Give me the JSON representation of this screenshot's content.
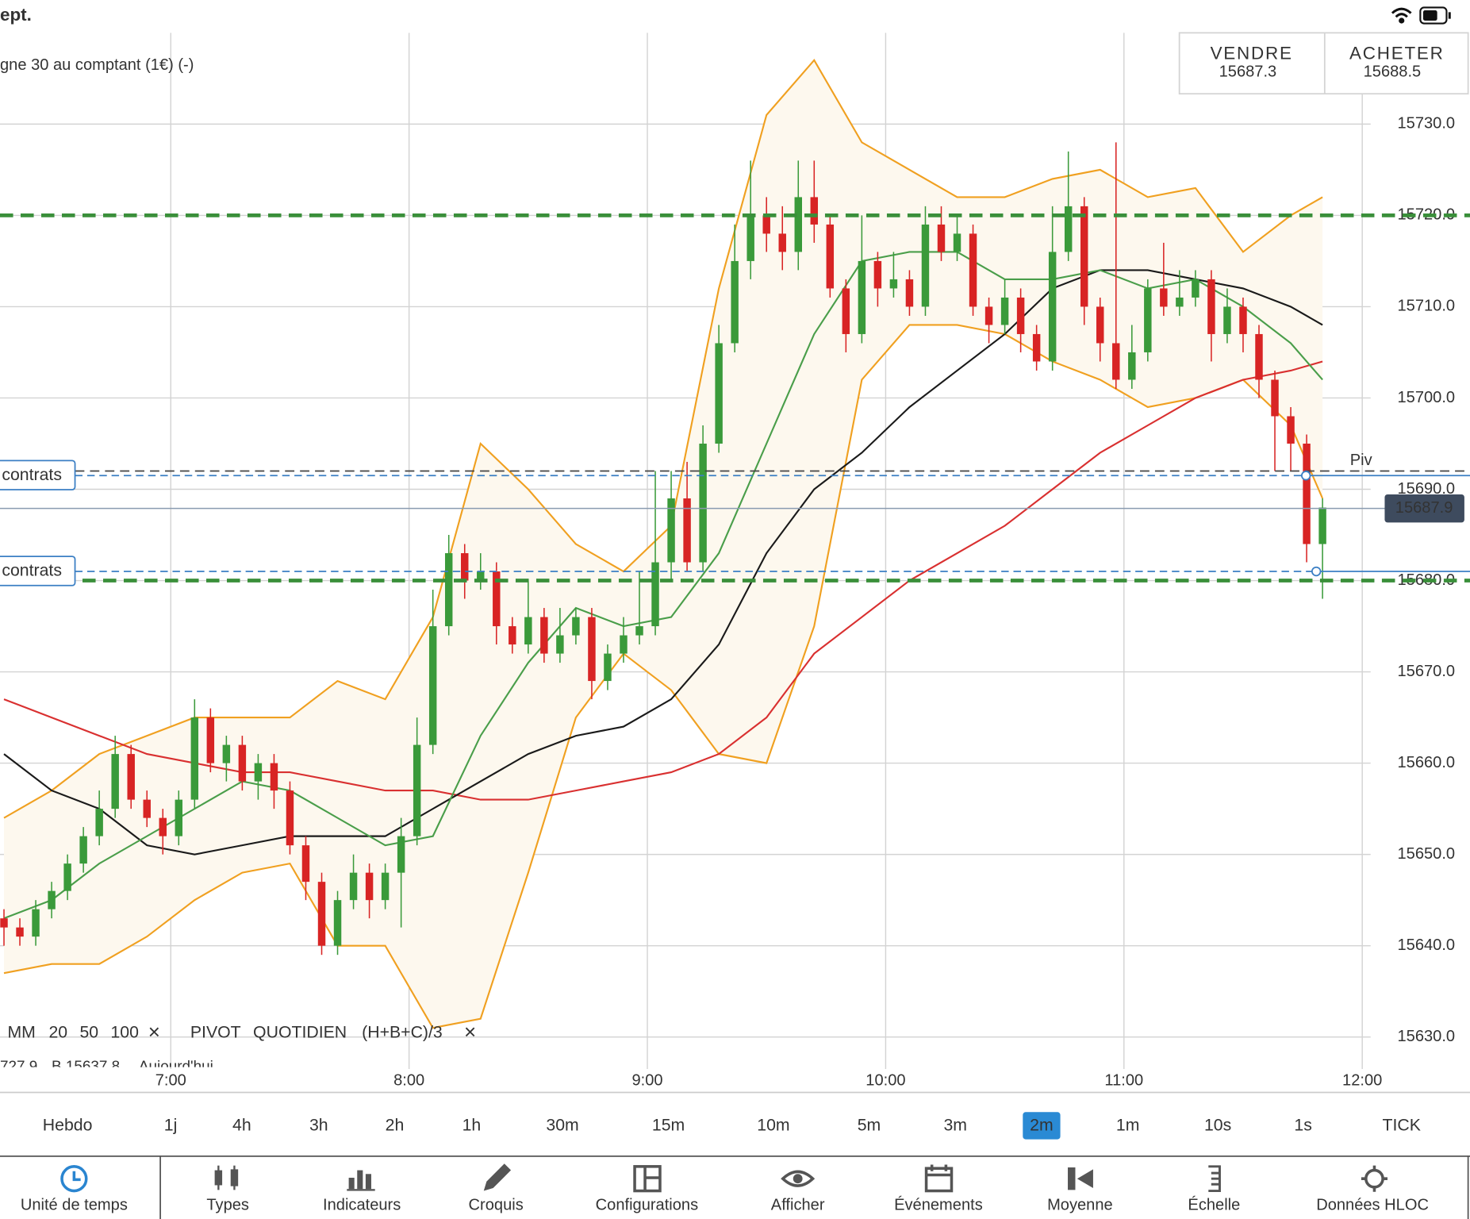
{
  "status": {
    "carrier": "ept."
  },
  "instrument": {
    "name": "gne 30 au comptant (1€) (-)"
  },
  "quote": {
    "sell_label": "VENDRE",
    "sell": 15687.3,
    "buy_label": "ACHETER",
    "buy": 15688.5
  },
  "legend": {
    "ma_label": "MM",
    "close_symbol": "×",
    "pivot_label": "PIVOT",
    "pivot_period": "QUOTIDIEN",
    "pivot_formula": "(H+B+C)/3",
    "pivot_close_symbol": "×"
  },
  "info_row": [
    "727.9",
    "B 15637.8",
    "Aujourd'hui"
  ],
  "timeframes": [
    "Hebdo",
    "1j",
    "4h",
    "3h",
    "2h",
    "1h",
    "30m",
    "15m",
    "10m",
    "5m",
    "3m",
    "2m",
    "1m",
    "10s",
    "1s",
    "TICK"
  ],
  "selected_timeframe": "2m",
  "toolbar": [
    "Unité de temps",
    "Types",
    "Indicateurs",
    "Croquis",
    "Configurations",
    "Afficher",
    "Événements",
    "Moyenne",
    "Échelle",
    "Données HLOC"
  ],
  "active_tool": "Unité de temps",
  "chart_data": {
    "type": "candlestick",
    "up_color": "#3a9a3a",
    "down_color": "#d82424",
    "grid": true,
    "xlim": [
      377,
      724
    ],
    "ylim": [
      15626.5,
      15740
    ],
    "xticks": [
      {
        "value": 420,
        "label": "7:00"
      },
      {
        "value": 480,
        "label": "8:00"
      },
      {
        "value": 540,
        "label": "9:00"
      },
      {
        "value": 600,
        "label": "10:00"
      },
      {
        "value": 660,
        "label": "11:00"
      },
      {
        "value": 720,
        "label": "12:00"
      }
    ],
    "yticks": [
      {
        "value": 15630,
        "label": "15630.0"
      },
      {
        "value": 15640,
        "label": "15640.0"
      },
      {
        "value": 15650,
        "label": "15650.0"
      },
      {
        "value": 15660,
        "label": "15660.0"
      },
      {
        "value": 15670,
        "label": "15670.0"
      },
      {
        "value": 15680,
        "label": "15680.0"
      },
      {
        "value": 15690,
        "label": "15690.0"
      },
      {
        "value": 15700,
        "label": "15700.0"
      },
      {
        "value": 15710,
        "label": "15710.0"
      },
      {
        "value": 15720,
        "label": "15720.0"
      },
      {
        "value": 15730,
        "label": "15730.0"
      }
    ],
    "x": [
      378,
      382,
      386,
      390,
      394,
      398,
      402,
      406,
      410,
      414,
      418,
      422,
      426,
      430,
      434,
      438,
      442,
      446,
      450,
      454,
      458,
      462,
      466,
      470,
      474,
      478,
      482,
      486,
      490,
      494,
      498,
      502,
      506,
      510,
      514,
      518,
      522,
      526,
      530,
      534,
      538,
      542,
      546,
      550,
      554,
      558,
      562,
      566,
      570,
      574,
      578,
      582,
      586,
      590,
      594,
      598,
      602,
      606,
      610,
      614,
      618,
      622,
      626,
      630,
      634,
      638,
      642,
      646,
      650,
      654,
      658,
      662,
      666,
      670,
      674,
      678,
      682,
      686,
      690,
      694,
      698,
      702,
      706,
      710
    ],
    "open": [
      15643,
      15642,
      15641,
      15644,
      15646,
      15649,
      15652,
      15655,
      15661,
      15656,
      15654,
      15652,
      15656,
      15665,
      15660,
      15662,
      15658,
      15660,
      15657,
      15651,
      15647,
      15640,
      15645,
      15648,
      15645,
      15648,
      15652,
      15662,
      15675,
      15683,
      15680,
      15681,
      15675,
      15673,
      15676,
      15672,
      15674,
      15676,
      15669,
      15672,
      15674,
      15675,
      15682,
      15689,
      15682,
      15695,
      15706,
      15715,
      15720,
      15718,
      15716,
      15722,
      15719,
      15712,
      15707,
      15715,
      15712,
      15713,
      15710,
      15719,
      15716,
      15718,
      15710,
      15708,
      15711,
      15707,
      15704,
      15716,
      15721,
      15710,
      15706,
      15702,
      15705,
      15712,
      15710,
      15711,
      15713,
      15707,
      15710,
      15707,
      15702,
      15698,
      15695,
      15684
    ],
    "high": [
      15644,
      15643,
      15645,
      15647,
      15650,
      15653,
      15657,
      15663,
      15662,
      15657,
      15655,
      15657,
      15667,
      15666,
      15663,
      15663,
      15661,
      15661,
      15658,
      15652,
      15648,
      15646,
      15650,
      15649,
      15649,
      15654,
      15665,
      15679,
      15685,
      15684,
      15683,
      15682,
      15676,
      15680,
      15677,
      15677,
      15677,
      15677,
      15673,
      15676,
      15681,
      15692,
      15692,
      15693,
      15697,
      15708,
      15719,
      15726,
      15722,
      15721,
      15726,
      15726,
      15720,
      15713,
      15720,
      15716,
      15716,
      15714,
      15721,
      15721,
      15720,
      15719,
      15711,
      15713,
      15712,
      15708,
      15721,
      15727,
      15722,
      15711,
      15728,
      15708,
      15713,
      15717,
      15714,
      15714,
      15714,
      15712,
      15711,
      15708,
      15703,
      15699,
      15696,
      15689
    ],
    "low": [
      15640,
      15640,
      15640,
      15643,
      15645,
      15648,
      15651,
      15654,
      15655,
      15653,
      15650,
      15651,
      15655,
      15659,
      15658,
      15657,
      15656,
      15655,
      15650,
      15645,
      15639,
      15639,
      15644,
      15643,
      15644,
      15642,
      15651,
      15661,
      15674,
      15678,
      15679,
      15673,
      15672,
      15672,
      15671,
      15671,
      15673,
      15667,
      15668,
      15671,
      15673,
      15674,
      15680,
      15681,
      15681,
      15694,
      15705,
      15713,
      15716,
      15714,
      15714,
      15717,
      15711,
      15705,
      15706,
      15710,
      15711,
      15709,
      15709,
      15715,
      15715,
      15709,
      15706,
      15707,
      15705,
      15703,
      15703,
      15715,
      15708,
      15704,
      15701,
      15701,
      15704,
      15709,
      15709,
      15710,
      15704,
      15706,
      15705,
      15700,
      15692,
      15692,
      15682,
      15678
    ],
    "close": [
      15642,
      15641,
      15644,
      15646,
      15649,
      15652,
      15655,
      15661,
      15656,
      15654,
      15652,
      15656,
      15665,
      15660,
      15662,
      15658,
      15660,
      15657,
      15651,
      15647,
      15640,
      15645,
      15648,
      15645,
      15648,
      15652,
      15662,
      15675,
      15683,
      15680,
      15681,
      15675,
      15673,
      15676,
      15672,
      15674,
      15676,
      15669,
      15672,
      15674,
      15675,
      15682,
      15689,
      15682,
      15695,
      15706,
      15715,
      15720,
      15718,
      15716,
      15722,
      15719,
      15712,
      15707,
      15715,
      15712,
      15713,
      15710,
      15719,
      15716,
      15718,
      15710,
      15708,
      15711,
      15707,
      15704,
      15716,
      15721,
      15710,
      15706,
      15702,
      15705,
      15712,
      15710,
      15711,
      15713,
      15707,
      15710,
      15707,
      15702,
      15698,
      15695,
      15684,
      15688
    ],
    "band_fill": "#fdf8ee",
    "series": [
      {
        "name": "20",
        "color": "#4a9e4a",
        "x": [
          378,
          390,
          402,
          414,
          426,
          438,
          450,
          462,
          474,
          486,
          498,
          510,
          522,
          534,
          546,
          558,
          570,
          582,
          594,
          606,
          618,
          630,
          642,
          654,
          666,
          678,
          690,
          702,
          710
        ],
        "values": [
          15643,
          15645,
          15649,
          15652,
          15655,
          15658,
          15657,
          15654,
          15651,
          15652,
          15663,
          15671,
          15677,
          15675,
          15676,
          15683,
          15695,
          15707,
          15715,
          15716,
          15716,
          15713,
          15713,
          15714,
          15712,
          15713,
          15710,
          15706,
          15702
        ]
      },
      {
        "name": "50",
        "color": "#1a1a1a",
        "x": [
          378,
          390,
          402,
          414,
          426,
          438,
          450,
          462,
          474,
          486,
          498,
          510,
          522,
          534,
          546,
          558,
          570,
          582,
          594,
          606,
          618,
          630,
          642,
          654,
          666,
          678,
          690,
          702,
          710
        ],
        "values": [
          15661,
          15657,
          15655,
          15651,
          15650,
          15651,
          15652,
          15652,
          15652,
          15655,
          15658,
          15661,
          15663,
          15664,
          15667,
          15673,
          15683,
          15690,
          15694,
          15699,
          15703,
          15707,
          15712,
          15714,
          15714,
          15713,
          15712,
          15710,
          15708
        ]
      },
      {
        "name": "100",
        "color": "#d93030",
        "x": [
          378,
          390,
          402,
          414,
          426,
          438,
          450,
          462,
          474,
          486,
          498,
          510,
          522,
          534,
          546,
          558,
          570,
          582,
          594,
          606,
          618,
          630,
          642,
          654,
          666,
          678,
          690,
          702,
          710
        ],
        "values": [
          15667,
          15665,
          15663,
          15661,
          15660,
          15659,
          15659,
          15658,
          15657,
          15657,
          15656,
          15656,
          15657,
          15658,
          15659,
          15661,
          15665,
          15672,
          15676,
          15680,
          15683,
          15686,
          15690,
          15694,
          15697,
          15700,
          15702,
          15703,
          15704
        ]
      },
      {
        "color": "#f0a020",
        "x": [
          378,
          390,
          402,
          414,
          426,
          438,
          450,
          462,
          474,
          486,
          498,
          510,
          522,
          534,
          546,
          558,
          570,
          582,
          594,
          606,
          618,
          630,
          642,
          654,
          666,
          678,
          690,
          702,
          710
        ],
        "values": [
          15654,
          15657,
          15661,
          15663,
          15665,
          15665,
          15665,
          15669,
          15667,
          15676,
          15695,
          15690,
          15684,
          15681,
          15686,
          15712,
          15731,
          15737,
          15728,
          15725,
          15722,
          15722,
          15724,
          15725,
          15722,
          15723,
          15716,
          15720,
          15722
        ]
      },
      {
        "color": "#f0a020",
        "x": [
          378,
          390,
          402,
          414,
          426,
          438,
          450,
          462,
          474,
          486,
          498,
          510,
          522,
          534,
          546,
          558,
          570,
          582,
          594,
          606,
          618,
          630,
          642,
          654,
          666,
          678,
          690,
          702,
          710
        ],
        "values": [
          15637,
          15638,
          15638,
          15641,
          15645,
          15648,
          15649,
          15640,
          15640,
          15631,
          15632,
          15648,
          15665,
          15672,
          15668,
          15661,
          15660,
          15675,
          15702,
          15708,
          15708,
          15707,
          15704,
          15702,
          15699,
          15700,
          15702,
          15697,
          15689
        ]
      }
    ],
    "support_lines": [
      15720,
      15680
    ],
    "support_color": "#3a8f3a",
    "pivot": {
      "value": 15692,
      "label": "Piv"
    },
    "orders": [
      {
        "value": 15691.5,
        "label": "contrats"
      },
      {
        "value": 15681,
        "label": "contrats"
      }
    ],
    "order_color": "#3b7fc4",
    "last_price": 15687.9
  }
}
